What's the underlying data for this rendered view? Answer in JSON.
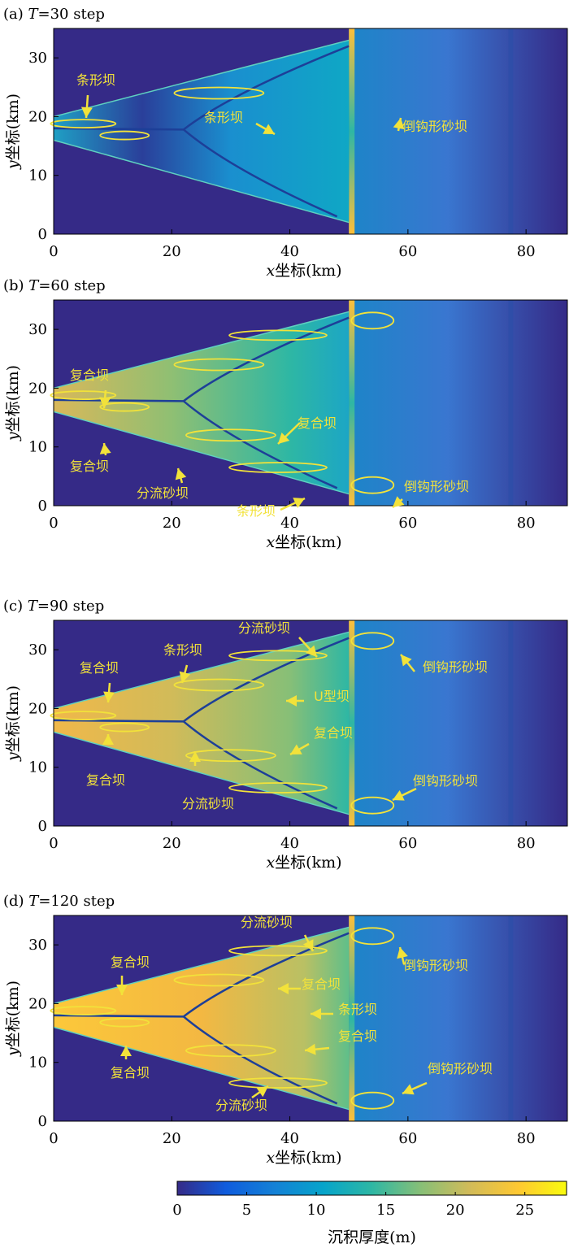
{
  "chart_data": [
    {
      "type": "heatmap",
      "panel_label": "(a)",
      "title_var": "T",
      "title_value": "=30 step",
      "xlabel_var": "x",
      "xlabel_rest": "坐标(km)",
      "ylabel_var": "y",
      "ylabel_rest": "坐标(km)",
      "xlim": [
        0,
        87
      ],
      "ylim": [
        0,
        35
      ],
      "xticks": [
        "0",
        "20",
        "40",
        "60",
        "80"
      ],
      "yticks": [
        "0",
        "10",
        "20",
        "30"
      ],
      "annotations": [
        "条形坝"
      ]
    },
    {
      "type": "heatmap",
      "panel_label": "(b)",
      "title_var": "T",
      "title_value": "=60 step",
      "xlabel_var": "x",
      "xlabel_rest": "坐标(km)",
      "ylabel_var": "y",
      "ylabel_rest": "坐标(km)",
      "xlim": [
        0,
        87
      ],
      "ylim": [
        0,
        35
      ],
      "xticks": [
        "0",
        "20",
        "40",
        "60",
        "80"
      ],
      "yticks": [
        "0",
        "10",
        "20",
        "30"
      ],
      "annotations": [
        "条形坝",
        "倒钩形砂坝",
        "复合坝",
        "复合坝",
        "复合坝",
        "分流砂坝",
        "条形坝",
        "倒钩形砂坝"
      ]
    },
    {
      "type": "heatmap",
      "panel_label": "(c)",
      "title_var": "T",
      "title_value": "=90 step",
      "xlabel_var": "x",
      "xlabel_rest": "坐标(km)",
      "ylabel_var": "y",
      "ylabel_rest": "坐标(km)",
      "xlim": [
        0,
        87
      ],
      "ylim": [
        0,
        35
      ],
      "xticks": [
        "0",
        "20",
        "40",
        "60",
        "80"
      ],
      "yticks": [
        "0",
        "10",
        "20",
        "30"
      ],
      "annotations": [
        "分流砂坝",
        "条形坝",
        "复合坝",
        "倒钩形砂坝",
        "U型坝",
        "复合坝",
        "复合坝",
        "倒钩形砂坝",
        "分流砂坝"
      ]
    },
    {
      "type": "heatmap",
      "panel_label": "(d)",
      "title_var": "T",
      "title_value": "=120 step",
      "xlabel_var": "x",
      "xlabel_rest": "坐标(km)",
      "ylabel_var": "y",
      "ylabel_rest": "坐标(km)",
      "xlim": [
        0,
        87
      ],
      "ylim": [
        0,
        35
      ],
      "xticks": [
        "0",
        "20",
        "40",
        "60",
        "80"
      ],
      "yticks": [
        "0",
        "10",
        "20",
        "30"
      ],
      "annotations": [
        "分流砂坝",
        "复合坝",
        "倒钩形砂坝",
        "复合坝",
        "条形坝",
        "复合坝",
        "复合坝",
        "倒钩形砂坝",
        "分流砂坝"
      ]
    }
  ],
  "colorbar": {
    "label": "沉积厚度(m)",
    "range": [
      0,
      28
    ],
    "ticks": [
      "0",
      "5",
      "10",
      "15",
      "20",
      "25"
    ],
    "colormap": "parula",
    "colors": [
      "#352a87",
      "#0f5cdd",
      "#1481d6",
      "#06a4ca",
      "#2eb7a4",
      "#87bf77",
      "#d1bb59",
      "#fec832",
      "#f9fb0e"
    ]
  },
  "annotation_color": "#f2e23a"
}
